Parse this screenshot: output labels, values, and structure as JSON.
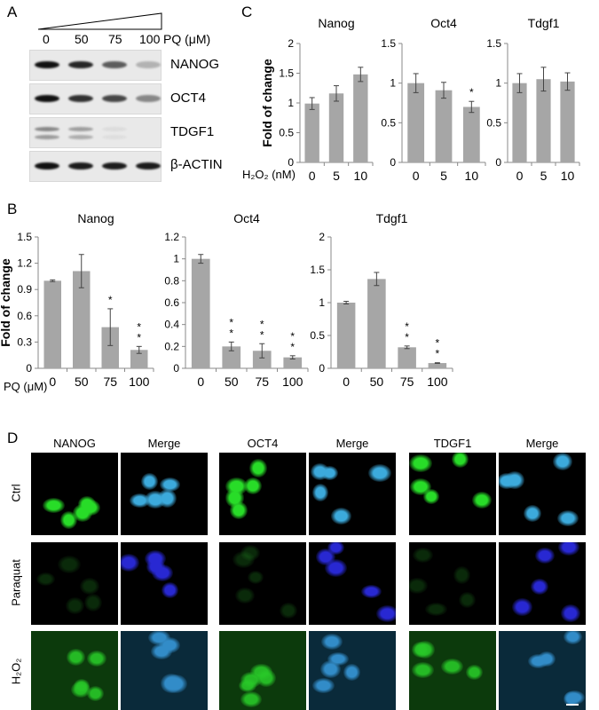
{
  "panels": {
    "a": "A",
    "b": "B",
    "c": "C",
    "d": "D"
  },
  "panel_a": {
    "doses": [
      "0",
      "50",
      "75",
      "100"
    ],
    "unit_label": "PQ (μM)",
    "proteins": [
      "NANOG",
      "OCT4",
      "TDGF1",
      "β-ACTIN"
    ],
    "band_intensity": [
      [
        1.0,
        0.9,
        0.65,
        0.25
      ],
      [
        1.0,
        0.85,
        0.75,
        0.45
      ],
      [
        0.45,
        0.35,
        0.06,
        0.0
      ],
      [
        1.0,
        0.95,
        0.95,
        0.95
      ]
    ]
  },
  "panel_b": {
    "xlabel_prefix": "PQ (μM)"
  },
  "panel_c": {
    "xlabel_prefix": "H₂O₂ (nM)"
  },
  "ylabel": "Fold of change",
  "bar_color": "#a6a6a6",
  "chart_data": [
    {
      "panel": "B",
      "type": "bar",
      "title": "Nanog",
      "categories": [
        "0",
        "50",
        "75",
        "100"
      ],
      "values": [
        1.0,
        1.11,
        0.47,
        0.21
      ],
      "errors": [
        0.01,
        0.19,
        0.21,
        0.04
      ],
      "significance": [
        "",
        "",
        "*",
        "**"
      ],
      "ylim": [
        0,
        1.5
      ],
      "yticks": [
        "0",
        "0.3",
        "0.6",
        "0.9",
        "1.2",
        "1.5"
      ],
      "ylabel": "Fold of change",
      "xlabel": "PQ (μM)"
    },
    {
      "panel": "B",
      "type": "bar",
      "title": "Oct4",
      "categories": [
        "0",
        "50",
        "75",
        "100"
      ],
      "values": [
        1.0,
        0.2,
        0.16,
        0.1
      ],
      "errors": [
        0.04,
        0.04,
        0.065,
        0.015
      ],
      "significance": [
        "",
        "**",
        "**",
        "**"
      ],
      "ylim": [
        0,
        1.2
      ],
      "yticks": [
        "0",
        "0.2",
        "0.4",
        "0.6",
        "0.8",
        "1",
        "1.2"
      ]
    },
    {
      "panel": "B",
      "type": "bar",
      "title": "Tdgf1",
      "categories": [
        "0",
        "50",
        "75",
        "100"
      ],
      "values": [
        1.0,
        1.36,
        0.32,
        0.08
      ],
      "errors": [
        0.02,
        0.1,
        0.02,
        0.005
      ],
      "significance": [
        "",
        "",
        "**",
        "**"
      ],
      "ylim": [
        0,
        2
      ],
      "yticks": [
        "0",
        "0.5",
        "1",
        "1.5",
        "2"
      ]
    },
    {
      "panel": "C",
      "type": "bar",
      "title": "Nanog",
      "categories": [
        "0",
        "5",
        "10"
      ],
      "values": [
        0.99,
        1.16,
        1.48
      ],
      "errors": [
        0.1,
        0.13,
        0.12
      ],
      "significance": [
        "",
        "",
        ""
      ],
      "ylim": [
        0,
        2
      ],
      "yticks": [
        "0",
        "0.5",
        "1",
        "1.5",
        "2"
      ],
      "ylabel": "Fold of change",
      "xlabel": "H₂O₂ (nM)"
    },
    {
      "panel": "C",
      "type": "bar",
      "title": "Oct4",
      "categories": [
        "0",
        "5",
        "10"
      ],
      "values": [
        1.0,
        0.91,
        0.7
      ],
      "errors": [
        0.12,
        0.1,
        0.07
      ],
      "significance": [
        "",
        "",
        "*"
      ],
      "ylim": [
        0,
        1.5
      ],
      "yticks": [
        "0",
        "0.5",
        "1",
        "1.5"
      ]
    },
    {
      "panel": "C",
      "type": "bar",
      "title": "Tdgf1",
      "categories": [
        "0",
        "5",
        "10"
      ],
      "values": [
        1.0,
        1.05,
        1.02
      ],
      "errors": [
        0.12,
        0.15,
        0.11
      ],
      "significance": [
        "",
        "",
        ""
      ],
      "ylim": [
        0,
        1.5
      ],
      "yticks": [
        "0",
        "0.5",
        "1",
        "1.5"
      ]
    }
  ],
  "panel_d": {
    "columns": [
      "NANOG",
      "Merge",
      "OCT4",
      "Merge",
      "TDGF1",
      "Merge"
    ],
    "rows": [
      "Ctrl",
      "Paraquat",
      "H₂O₂"
    ]
  }
}
